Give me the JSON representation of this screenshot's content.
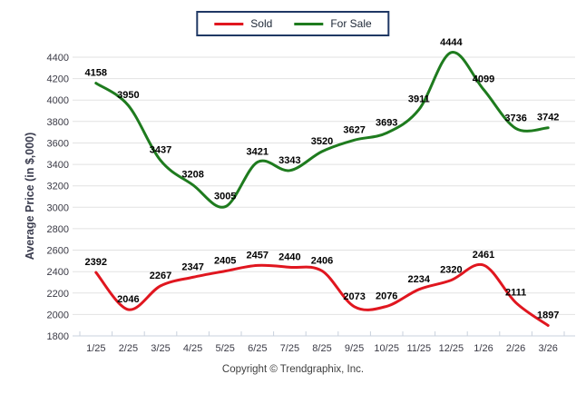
{
  "footer": {
    "copyright": "Copyright © Trendgraphix, Inc."
  },
  "chart_data": {
    "type": "line",
    "title": "",
    "xlabel": "",
    "ylabel": "Average Price (in $,000)",
    "ylim": [
      1800,
      4400
    ],
    "ytick_step": 200,
    "grid": "horizontal",
    "legend_position": "top-center",
    "smooth": true,
    "categories": [
      "1/25",
      "2/25",
      "3/25",
      "4/25",
      "5/25",
      "6/25",
      "7/25",
      "8/25",
      "9/25",
      "10/25",
      "11/25",
      "12/25",
      "1/26",
      "2/26",
      "3/26"
    ],
    "series": [
      {
        "name": "Sold",
        "color": "#e0161f",
        "values": [
          2392,
          2046,
          2267,
          2347,
          2405,
          2457,
          2440,
          2406,
          2073,
          2076,
          2234,
          2320,
          2461,
          2111,
          1897
        ]
      },
      {
        "name": "For Sale",
        "color": "#1e7b1e",
        "values": [
          4158,
          3950,
          3437,
          3208,
          3005,
          3421,
          3343,
          3520,
          3627,
          3693,
          3911,
          4444,
          4099,
          3736,
          3742
        ]
      }
    ],
    "colors": {
      "grid": "#e2e2e2",
      "axis": "#c9d1dd",
      "tick_text": "#3a3a45",
      "data_label": "#000000",
      "legend_border": "#1f3864"
    }
  }
}
